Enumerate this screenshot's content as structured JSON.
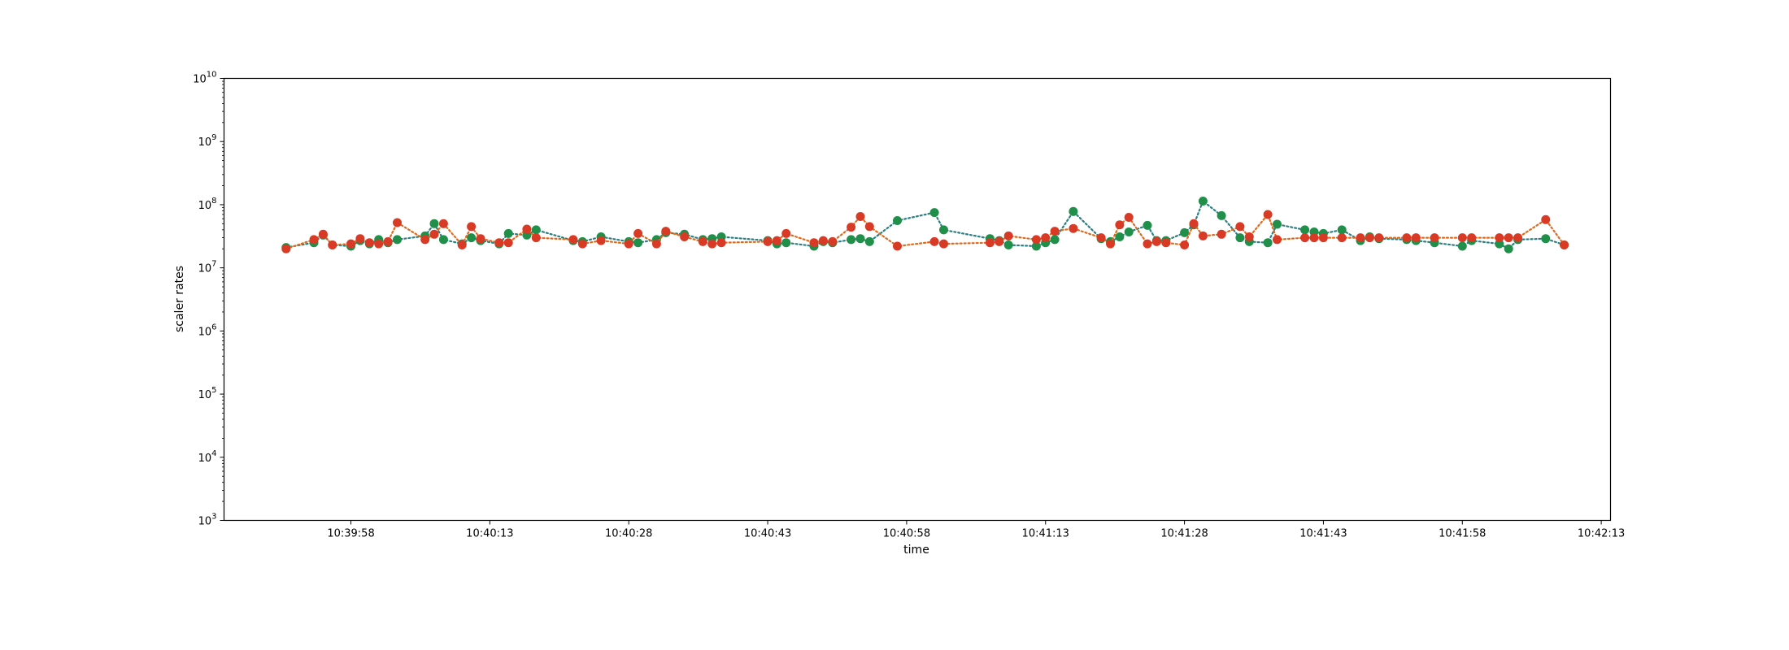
{
  "chart_data": {
    "type": "line",
    "title": "",
    "xlabel": "time",
    "ylabel": "scaler rates",
    "y_scale": "log",
    "ylim_exponents": [
      3,
      10
    ],
    "y_tick_exponents": [
      3,
      4,
      5,
      6,
      7,
      8,
      9,
      10
    ],
    "xlim": [
      "10:39:44.3",
      "10:42:14.0"
    ],
    "x_tick_labels": [
      "10:39:58",
      "10:40:13",
      "10:40:28",
      "10:40:43",
      "10:40:58",
      "10:41:13",
      "10:41:28",
      "10:41:43",
      "10:41:58",
      "10:42:13"
    ],
    "line_style": "dotted",
    "marker": "circle",
    "grid": false,
    "series": [
      {
        "color": "#1f8f4a",
        "line_color": "#2c7f83",
        "x": [
          "10:39:51",
          "10:39:54",
          "10:39:55",
          "10:39:56",
          "10:39:58",
          "10:39:59",
          "10:40:00",
          "10:40:01",
          "10:40:02",
          "10:40:03",
          "10:40:06",
          "10:40:07",
          "10:40:08",
          "10:40:10",
          "10:40:11",
          "10:40:12",
          "10:40:14",
          "10:40:15",
          "10:40:17",
          "10:40:18",
          "10:40:22",
          "10:40:23",
          "10:40:25",
          "10:40:28",
          "10:40:29",
          "10:40:31",
          "10:40:32",
          "10:40:34",
          "10:40:36",
          "10:40:37",
          "10:40:38",
          "10:40:43",
          "10:40:44",
          "10:40:45",
          "10:40:48",
          "10:40:49",
          "10:40:50",
          "10:40:52",
          "10:40:53",
          "10:40:54",
          "10:40:57",
          "10:41:01",
          "10:41:02",
          "10:41:07",
          "10:41:08",
          "10:41:09",
          "10:41:12",
          "10:41:13",
          "10:41:14",
          "10:41:16",
          "10:41:19",
          "10:41:20",
          "10:41:21",
          "10:41:22",
          "10:41:24",
          "10:41:25",
          "10:41:26",
          "10:41:28",
          "10:41:29",
          "10:41:30",
          "10:41:32",
          "10:41:34",
          "10:41:35",
          "10:41:37",
          "10:41:38",
          "10:41:41",
          "10:41:42",
          "10:41:43",
          "10:41:45",
          "10:41:47",
          "10:41:48",
          "10:41:49",
          "10:41:52",
          "10:41:53",
          "10:41:55",
          "10:41:58",
          "10:41:59",
          "10:42:02",
          "10:42:03",
          "10:42:04",
          "10:42:07",
          "10:42:09"
        ],
        "y": [
          21000000,
          25000000,
          33000000,
          23000000,
          22000000,
          27000000,
          24000000,
          28000000,
          25000000,
          28000000,
          32000000,
          50000000,
          28000000,
          24000000,
          30000000,
          27000000,
          24000000,
          35000000,
          33000000,
          40000000,
          27000000,
          26000000,
          31000000,
          26000000,
          25000000,
          28000000,
          36000000,
          34000000,
          28000000,
          29000000,
          31000000,
          27000000,
          24000000,
          25000000,
          22000000,
          26000000,
          25000000,
          28000000,
          29000000,
          26000000,
          56000000,
          75000000,
          40000000,
          29000000,
          27000000,
          23000000,
          22000000,
          25000000,
          28000000,
          78000000,
          29000000,
          26000000,
          31000000,
          37000000,
          47000000,
          27000000,
          27000000,
          36000000,
          48000000,
          114000000,
          67000000,
          30000000,
          26000000,
          25000000,
          49000000,
          40000000,
          37000000,
          35000000,
          40000000,
          27000000,
          31000000,
          29000000,
          28000000,
          27000000,
          25000000,
          22000000,
          27000000,
          24000000,
          20000000,
          28000000,
          29000000,
          23000000
        ]
      },
      {
        "color": "#d93a26",
        "line_color": "#e06a1c",
        "x": [
          "10:39:51",
          "10:39:54",
          "10:39:55",
          "10:39:56",
          "10:39:58",
          "10:39:59",
          "10:40:00",
          "10:40:01",
          "10:40:02",
          "10:40:03",
          "10:40:06",
          "10:40:07",
          "10:40:08",
          "10:40:10",
          "10:40:11",
          "10:40:12",
          "10:40:14",
          "10:40:15",
          "10:40:17",
          "10:40:18",
          "10:40:22",
          "10:40:23",
          "10:40:25",
          "10:40:28",
          "10:40:29",
          "10:40:31",
          "10:40:32",
          "10:40:34",
          "10:40:36",
          "10:40:37",
          "10:40:38",
          "10:40:43",
          "10:40:44",
          "10:40:45",
          "10:40:48",
          "10:40:49",
          "10:40:50",
          "10:40:52",
          "10:40:53",
          "10:40:54",
          "10:40:57",
          "10:41:01",
          "10:41:02",
          "10:41:07",
          "10:41:08",
          "10:41:09",
          "10:41:12",
          "10:41:13",
          "10:41:14",
          "10:41:16",
          "10:41:19",
          "10:41:20",
          "10:41:21",
          "10:41:22",
          "10:41:24",
          "10:41:25",
          "10:41:26",
          "10:41:28",
          "10:41:29",
          "10:41:30",
          "10:41:32",
          "10:41:34",
          "10:41:35",
          "10:41:37",
          "10:41:38",
          "10:41:41",
          "10:41:42",
          "10:41:43",
          "10:41:45",
          "10:41:47",
          "10:41:48",
          "10:41:49",
          "10:41:52",
          "10:41:53",
          "10:41:55",
          "10:41:58",
          "10:41:59",
          "10:42:02",
          "10:42:03",
          "10:42:04",
          "10:42:07",
          "10:42:09"
        ],
        "y": [
          20000000,
          28000000,
          34000000,
          23000000,
          24000000,
          29000000,
          25000000,
          24000000,
          26000000,
          52000000,
          28000000,
          34000000,
          50000000,
          23000000,
          45000000,
          29000000,
          25000000,
          25000000,
          41000000,
          30000000,
          28000000,
          24000000,
          27000000,
          24000000,
          35000000,
          24000000,
          38000000,
          31000000,
          26000000,
          24000000,
          25000000,
          26000000,
          27000000,
          35000000,
          25000000,
          27000000,
          26000000,
          44000000,
          65000000,
          45000000,
          22000000,
          26000000,
          24000000,
          25000000,
          26000000,
          32000000,
          28000000,
          30000000,
          38000000,
          42000000,
          30000000,
          24000000,
          48000000,
          63000000,
          24000000,
          26000000,
          25000000,
          23000000,
          50000000,
          32000000,
          34000000,
          45000000,
          31000000,
          70000000,
          28000000,
          30000000,
          30000000,
          30000000,
          30000000,
          30000000,
          30000000,
          30000000,
          30000000,
          30000000,
          30000000,
          30000000,
          30000000,
          30000000,
          30000000,
          30000000,
          58000000,
          23000000
        ]
      }
    ]
  }
}
